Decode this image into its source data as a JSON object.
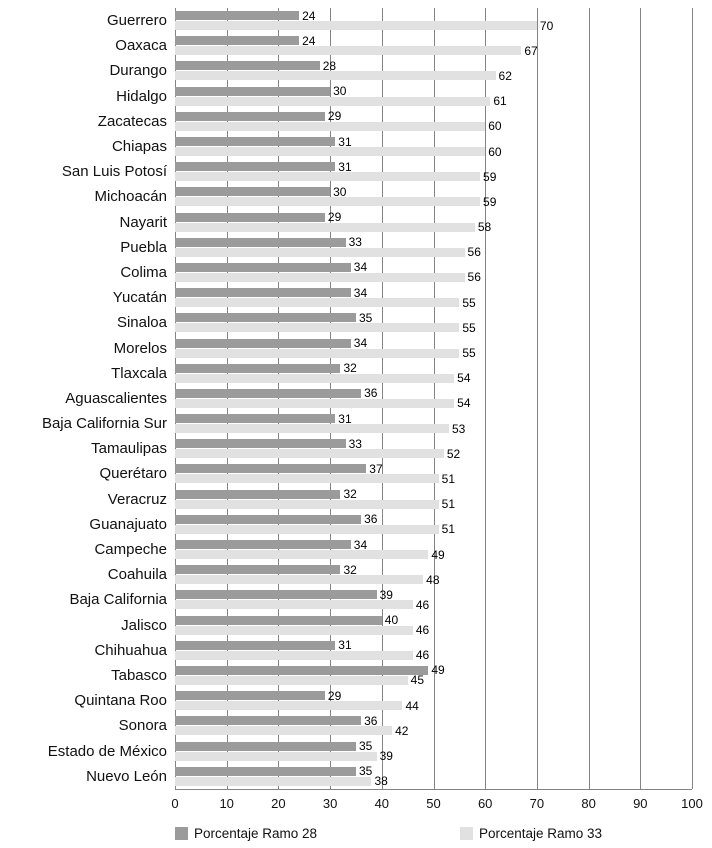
{
  "chart_data": {
    "type": "bar",
    "orientation": "horizontal",
    "title": "",
    "xlabel": "",
    "ylabel": "",
    "xlim": [
      0,
      100
    ],
    "xticks": [
      0,
      10,
      20,
      30,
      40,
      50,
      60,
      70,
      80,
      90,
      100
    ],
    "grid": "vertical",
    "legend_position": "bottom",
    "categories": [
      "Guerrero",
      "Oaxaca",
      "Durango",
      "Hidalgo",
      "Zacatecas",
      "Chiapas",
      "San Luis Potosí",
      "Michoacán",
      "Nayarit",
      "Puebla",
      "Colima",
      "Yucatán",
      "Sinaloa",
      "Morelos",
      "Tlaxcala",
      "Aguascalientes",
      "Baja California Sur",
      "Tamaulipas",
      "Querétaro",
      "Veracruz",
      "Guanajuato",
      "Campeche",
      "Coahuila",
      "Baja California",
      "Jalisco",
      "Chihuahua",
      "Tabasco",
      "Quintana Roo",
      "Sonora",
      "Estado de México",
      "Nuevo León"
    ],
    "series": [
      {
        "name": "Porcentaje Ramo 28",
        "color": "#9b9b9b",
        "values": [
          24,
          24,
          28,
          30,
          29,
          31,
          31,
          30,
          29,
          33,
          34,
          34,
          35,
          34,
          32,
          36,
          31,
          33,
          37,
          32,
          36,
          34,
          32,
          39,
          40,
          31,
          49,
          29,
          36,
          35,
          35
        ]
      },
      {
        "name": "Porcentaje Ramo 33",
        "color": "#e1e1e1",
        "values": [
          70,
          67,
          62,
          61,
          60,
          60,
          59,
          59,
          58,
          56,
          56,
          55,
          55,
          55,
          54,
          54,
          53,
          52,
          51,
          51,
          51,
          49,
          48,
          46,
          46,
          46,
          45,
          44,
          42,
          39,
          38
        ]
      }
    ]
  }
}
